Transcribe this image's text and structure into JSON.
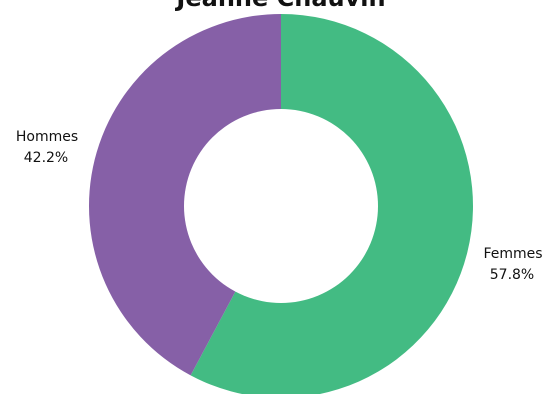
{
  "chart_data": {
    "type": "pie",
    "title": "Jeanne Chauvin",
    "donut": true,
    "slices": [
      {
        "label": "Femmes",
        "value": 57.8,
        "value_label": "57.8%",
        "color": "#43bb83"
      },
      {
        "label": "Hommes",
        "value": 42.2,
        "value_label": "42.2%",
        "color": "#8660a7"
      }
    ]
  }
}
